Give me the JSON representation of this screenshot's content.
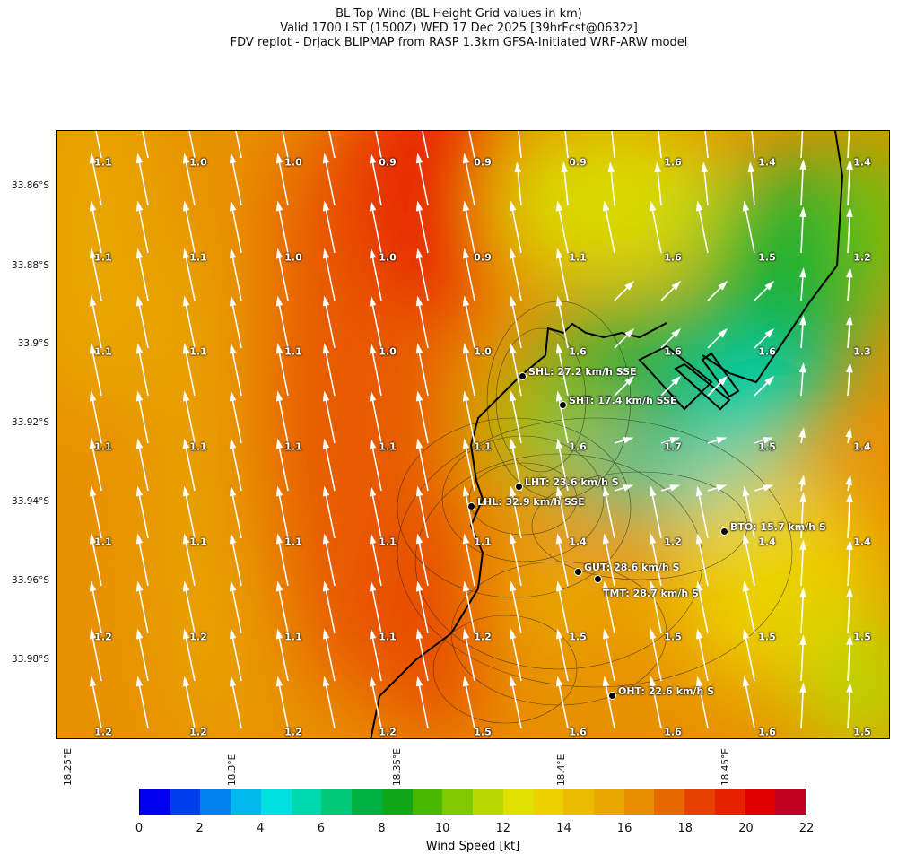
{
  "title": {
    "line1": "BL Top Wind (BL Height Grid values in km)",
    "line2": "Valid 1700 LST (1500Z) WED 17 Dec 2025 [39hrFcst@0632z]",
    "line3": "FDV replot - DrJack BLIPMAP from RASP 1.3km GFSA-Initiated WRF-ARW model"
  },
  "lat_labels": [
    "33.86°S",
    "33.88°S",
    "33.9°S",
    "33.92°S",
    "33.94°S",
    "33.96°S",
    "33.98°S"
  ],
  "lon_labels": [
    "18.25°E",
    "18.3°E",
    "18.35°E",
    "18.4°E",
    "18.45°E"
  ],
  "grid_values": [
    [
      "1.1",
      "1.0",
      "1.0",
      "0.9",
      "0.9",
      "0.9",
      "1.6",
      "1.4",
      "1.4"
    ],
    [
      "1.1",
      "1.1",
      "1.0",
      "1.0",
      "0.9",
      "1.1",
      "1.6",
      "1.5",
      "1.2"
    ],
    [
      "1.1",
      "1.1",
      "1.1",
      "1.0",
      "1.0",
      "1.6",
      "1.6",
      "1.6",
      "1.3"
    ],
    [
      "1.1",
      "1.1",
      "1.1",
      "1.1",
      "1.1",
      "1.6",
      "1.7",
      "1.5",
      "1.4"
    ],
    [
      "1.1",
      "1.1",
      "1.1",
      "1.1",
      "1.1",
      "1.4",
      "1.2",
      "1.4",
      "1.4"
    ],
    [
      "1.2",
      "1.2",
      "1.1",
      "1.1",
      "1.2",
      "1.5",
      "1.5",
      "1.5",
      "1.5"
    ],
    [
      "1.2",
      "1.2",
      "1.2",
      "1.2",
      "1.5",
      "1.6",
      "1.6",
      "1.6",
      "1.5"
    ]
  ],
  "stations": [
    {
      "label": "SHL: 27.2 km/h SSE"
    },
    {
      "label": "SHT: 17.4 km/h SSE"
    },
    {
      "label": "LHT: 23.6 km/h S"
    },
    {
      "label": "LHL: 32.9 km/h SSE"
    },
    {
      "label": "BTO: 15.7 km/h S"
    },
    {
      "label": "GUT: 28.6 km/h S"
    },
    {
      "label": "TMT: 28.7 km/h S"
    },
    {
      "label": "OHT: 22.6 km/h S"
    }
  ],
  "colorbar": {
    "label": "Wind Speed [kt]",
    "ticks": [
      "0",
      "2",
      "4",
      "6",
      "8",
      "10",
      "12",
      "14",
      "16",
      "18",
      "20",
      "22"
    ],
    "range": [
      0,
      22
    ],
    "colors": [
      "#0000f0",
      "#0040ec",
      "#0080ec",
      "#00b8ec",
      "#00e0e0",
      "#00d8b0",
      "#00c878",
      "#00b040",
      "#10a818",
      "#48b800",
      "#80c800",
      "#b8d800",
      "#e0e000",
      "#ecd000",
      "#ecbc00",
      "#e8a800",
      "#e88c00",
      "#e86800",
      "#e84000",
      "#e82000",
      "#e00000",
      "#c00020"
    ]
  }
}
